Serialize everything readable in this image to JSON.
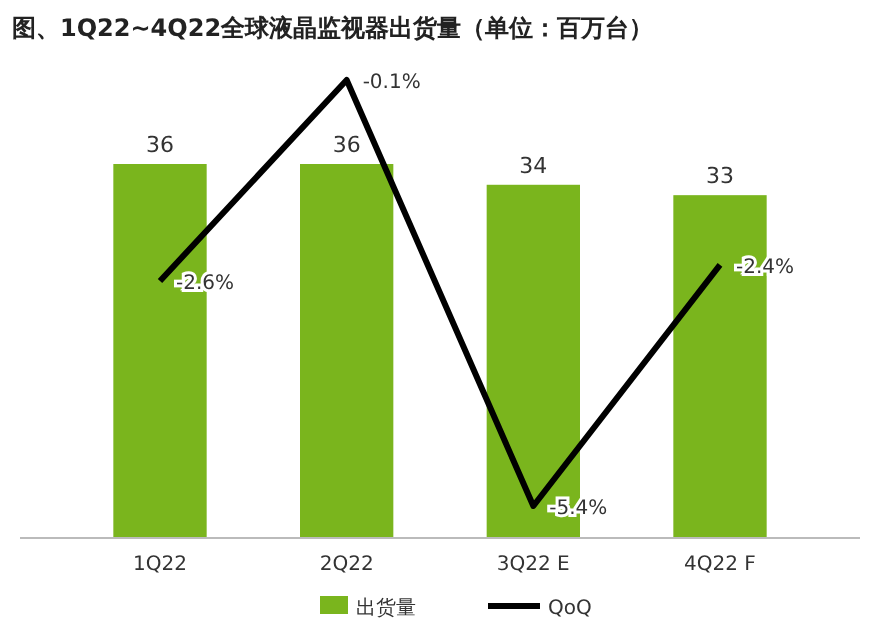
{
  "chart_data": {
    "type": "bar",
    "title": "图、1Q22~4Q22全球液晶监视器出货量（单位：百万台）",
    "categories": [
      "1Q22",
      "2Q22",
      "3Q22 E",
      "4Q22 F"
    ],
    "series": [
      {
        "name": "出货量",
        "color": "#7ab51d",
        "values": [
          36,
          36,
          34,
          33
        ]
      },
      {
        "name": "QoQ",
        "type": "line",
        "axis": "y2",
        "color": "#000000",
        "values": [
          -2.6,
          -0.1,
          -5.4,
          -2.4
        ],
        "value_labels": [
          "-2.6%",
          "-0.1%",
          "-5.4%",
          "-2.4%"
        ]
      }
    ],
    "data_labels": true,
    "legend": "bottom",
    "grid": false
  }
}
